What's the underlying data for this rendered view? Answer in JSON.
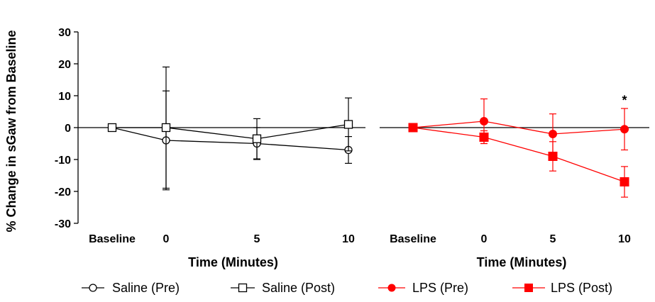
{
  "y_axis_label": "% Change in sGaw from Baseline",
  "legend": [
    {
      "label": "Saline (Pre)",
      "color": "#000000",
      "marker": "open-circle"
    },
    {
      "label": "Saline (Post)",
      "color": "#000000",
      "marker": "open-square"
    },
    {
      "label": "LPS (Pre)",
      "color": "#ff0000",
      "marker": "filled-circle"
    },
    {
      "label": "LPS (Post)",
      "color": "#ff0000",
      "marker": "filled-square"
    }
  ],
  "chart_data": [
    {
      "type": "line",
      "categories": [
        "Baseline",
        "0",
        "5",
        "10"
      ],
      "xlabel": "Time (Minutes)",
      "ylabel": "% Change in sGaw from Baseline",
      "ylim": [
        -30,
        30
      ],
      "yticks": [
        "-30",
        "-20",
        "-10",
        "0",
        "10",
        "20",
        "30"
      ],
      "series": [
        {
          "name": "Saline (Pre)",
          "color": "#000000",
          "marker": "open-circle",
          "values": [
            0,
            -4,
            -5,
            -7
          ],
          "err": [
            0,
            15.5,
            5,
            4.2
          ]
        },
        {
          "name": "Saline (Post)",
          "color": "#000000",
          "marker": "open-square",
          "values": [
            0,
            0,
            -3.5,
            1
          ],
          "err": [
            0,
            19,
            6.3,
            8.3
          ]
        }
      ],
      "annotations": []
    },
    {
      "type": "line",
      "categories": [
        "Baseline",
        "0",
        "5",
        "10"
      ],
      "xlabel": "Time (Minutes)",
      "ylim": [
        -30,
        30
      ],
      "series": [
        {
          "name": "LPS (Pre)",
          "color": "#ff0000",
          "marker": "filled-circle",
          "values": [
            0,
            2,
            -2,
            -0.5
          ],
          "err": [
            0,
            7,
            6.3,
            6.5
          ]
        },
        {
          "name": "LPS (Post)",
          "color": "#ff0000",
          "marker": "filled-square",
          "values": [
            0,
            -3,
            -9,
            -17
          ],
          "err": [
            0,
            2,
            4.6,
            4.8
          ]
        }
      ],
      "annotations": [
        {
          "text": "*",
          "category": "10",
          "y": 9
        }
      ]
    }
  ]
}
